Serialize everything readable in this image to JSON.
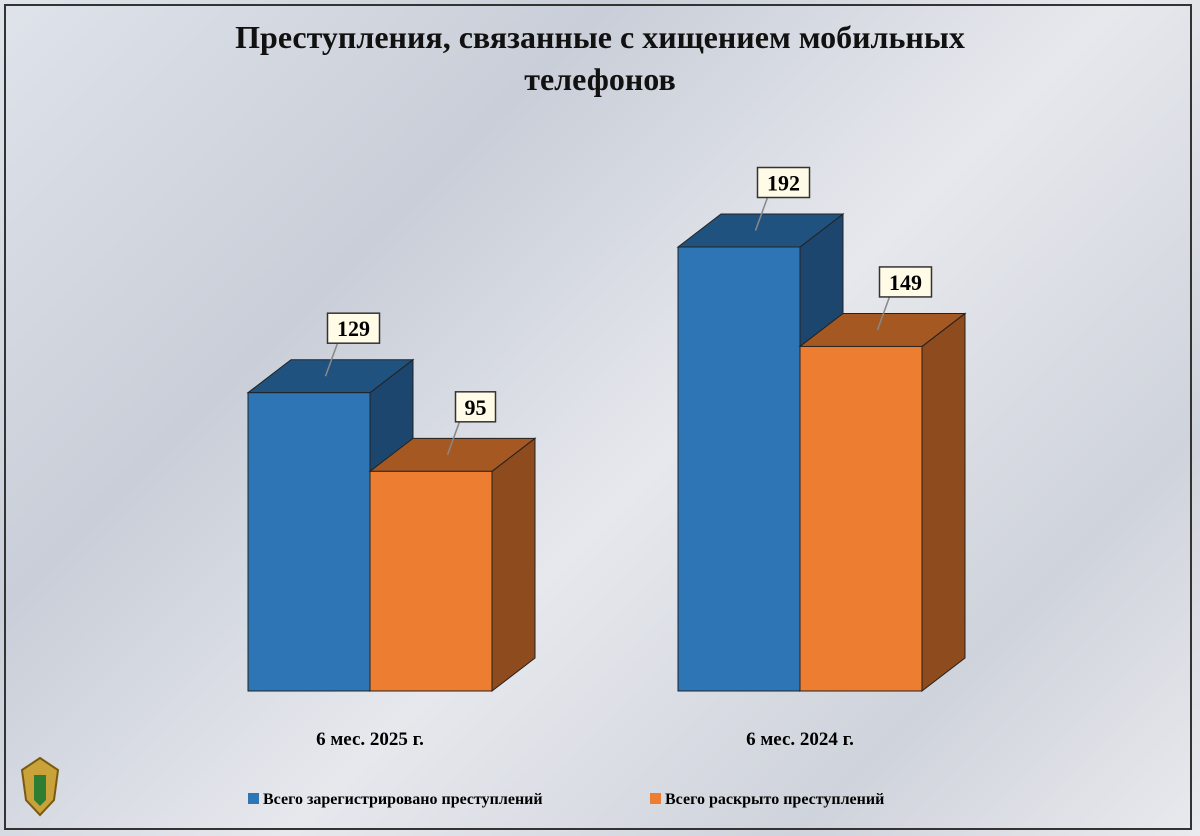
{
  "chart_data": {
    "type": "bar3d",
    "title": "Преступления, связанные с хищением мобильных телефонов",
    "categories": [
      "6 мес. 2025 г.",
      "6 мес. 2024 г."
    ],
    "series": [
      {
        "name": "Всего зарегистрировано преступлений",
        "color": "#2e75b6",
        "values": [
          129,
          192
        ]
      },
      {
        "name": "Всего раскрыто преступлений",
        "color": "#ed7d31",
        "values": [
          95,
          149
        ]
      }
    ],
    "legend": "bottom"
  }
}
